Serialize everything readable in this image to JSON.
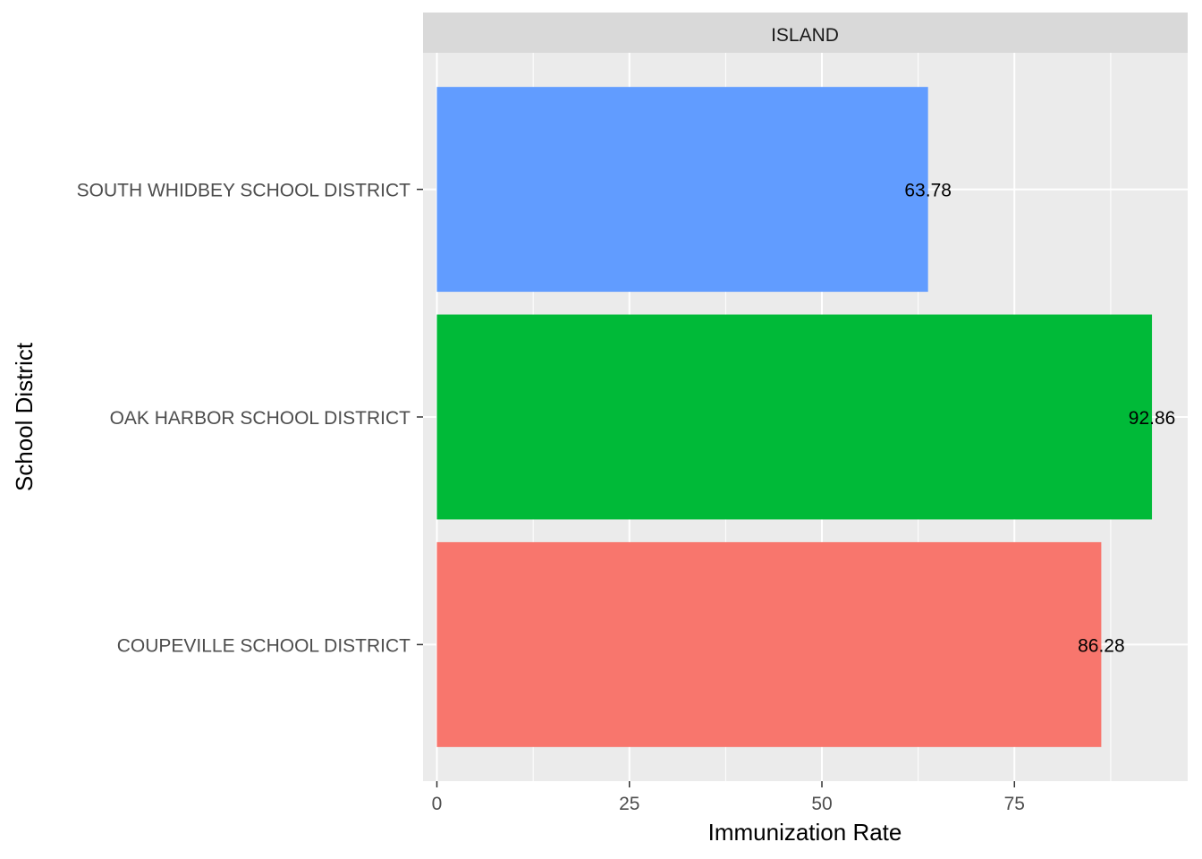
{
  "chart_data": {
    "type": "bar",
    "orientation": "horizontal",
    "facet": "ISLAND",
    "categories": [
      "COUPEVILLE SCHOOL DISTRICT",
      "OAK HARBOR SCHOOL DISTRICT",
      "SOUTH WHIDBEY SCHOOL DISTRICT"
    ],
    "values": [
      86.28,
      92.86,
      63.78
    ],
    "value_labels": [
      "86.28",
      "92.86",
      "63.78"
    ],
    "colors": [
      "#F8766D",
      "#00BA38",
      "#619CFF"
    ],
    "xlabel": "Immunization Rate",
    "ylabel": "School District",
    "xlim": [
      -1.8,
      97.5
    ],
    "x_ticks": [
      0,
      25,
      50,
      75
    ],
    "x_tick_labels": [
      "0",
      "25",
      "50",
      "75"
    ],
    "grid": true,
    "legend": "none",
    "panel_background": "#EBEBEB",
    "strip_background": "#D9D9D9"
  }
}
